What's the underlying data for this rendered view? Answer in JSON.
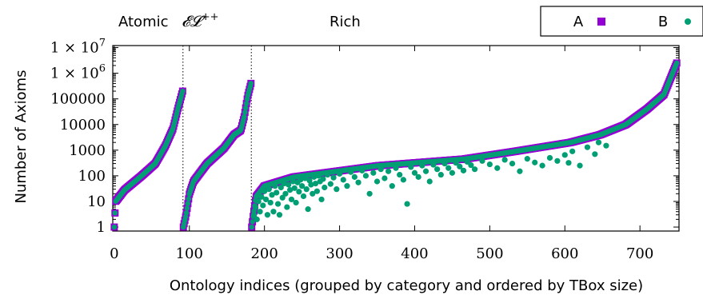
{
  "chart_data": {
    "type": "scatter",
    "xlabel": "Ontology indices (grouped by category and ordered by TBox size)",
    "ylabel": "Number of Axioms",
    "yscale": "log",
    "xlim": [
      -2,
      752
    ],
    "ylim": [
      0.7,
      12000000
    ],
    "xticks": [
      0,
      100,
      200,
      300,
      400,
      500,
      600,
      700
    ],
    "xtick_labels": [
      "0",
      "100",
      "200",
      "300",
      "400",
      "500",
      "600",
      "700"
    ],
    "yticks": [
      1,
      10,
      100,
      1000,
      10000,
      100000,
      1000000,
      10000000
    ],
    "ytick_labels": [
      "1",
      "10",
      "100",
      "1000",
      "10000",
      "100000",
      "1 × 10",
      "1 × 10"
    ],
    "ytick_exponents": [
      "",
      "",
      "",
      "",
      "",
      "",
      "6",
      "7"
    ],
    "groups": [
      {
        "label": "Atomic",
        "x_range": [
          0,
          91
        ]
      },
      {
        "label": "𝓔𝓛",
        "label_superscript": "++",
        "x_range": [
          92,
          182
        ]
      },
      {
        "label": "Rich",
        "x_range": [
          183,
          749
        ]
      }
    ],
    "separators_x": [
      91.5,
      182.5
    ],
    "legend_position": "top-right",
    "series": [
      {
        "name": "A",
        "marker": "square",
        "color": "#9400d3",
        "segments": [
          {
            "x_start": 0,
            "x_end": 91,
            "points": [
              [
                0,
                1
              ],
              [
                0.02,
                10
              ],
              [
                0.15,
                28
              ],
              [
                0.4,
                100
              ],
              [
                0.6,
                300
              ],
              [
                0.75,
                1500
              ],
              [
                0.86,
                7000
              ],
              [
                0.93,
                40000
              ],
              [
                1.0,
                200000
              ]
            ]
          },
          {
            "x_start": 92,
            "x_end": 182,
            "points": [
              [
                0,
                1
              ],
              [
                0.04,
                3
              ],
              [
                0.09,
                20
              ],
              [
                0.15,
                60
              ],
              [
                0.35,
                300
              ],
              [
                0.6,
                1200
              ],
              [
                0.75,
                4000
              ],
              [
                0.85,
                6000
              ],
              [
                0.9,
                20000
              ],
              [
                0.95,
                120000
              ],
              [
                1.0,
                400000
              ]
            ]
          },
          {
            "x_start": 183,
            "x_end": 749,
            "points": [
              [
                0,
                1
              ],
              [
                0.01,
                15
              ],
              [
                0.03,
                40
              ],
              [
                0.1,
                90
              ],
              [
                0.3,
                250
              ],
              [
                0.5,
                450
              ],
              [
                0.62,
                900
              ],
              [
                0.75,
                2000
              ],
              [
                0.82,
                4000
              ],
              [
                0.88,
                10000
              ],
              [
                0.93,
                40000
              ],
              [
                0.97,
                150000
              ],
              [
                1.0,
                2500000
              ]
            ]
          }
        ]
      },
      {
        "name": "B",
        "marker": "circle",
        "color": "#009e73",
        "extra_low_points": [
          [
            186,
            3
          ],
          [
            188,
            6
          ],
          [
            190,
            2
          ],
          [
            192,
            10
          ],
          [
            194,
            4
          ],
          [
            196,
            15
          ],
          [
            198,
            7
          ],
          [
            200,
            25
          ],
          [
            202,
            12
          ],
          [
            204,
            3
          ],
          [
            206,
            30
          ],
          [
            208,
            9
          ],
          [
            210,
            18
          ],
          [
            212,
            4
          ],
          [
            214,
            40
          ],
          [
            216,
            22
          ],
          [
            218,
            8
          ],
          [
            220,
            3
          ],
          [
            222,
            35
          ],
          [
            224,
            14
          ],
          [
            226,
            50
          ],
          [
            228,
            20
          ],
          [
            230,
            6
          ],
          [
            232,
            45
          ],
          [
            234,
            28
          ],
          [
            236,
            12
          ],
          [
            238,
            60
          ],
          [
            240,
            33
          ],
          [
            242,
            9
          ],
          [
            244,
            55
          ],
          [
            246,
            24
          ],
          [
            248,
            70
          ],
          [
            250,
            40
          ],
          [
            252,
            16
          ],
          [
            254,
            80
          ],
          [
            256,
            30
          ],
          [
            258,
            5
          ],
          [
            260,
            65
          ],
          [
            262,
            45
          ],
          [
            264,
            20
          ],
          [
            266,
            90
          ],
          [
            268,
            50
          ],
          [
            270,
            25
          ],
          [
            272,
            100
          ],
          [
            274,
            60
          ],
          [
            276,
            12
          ],
          [
            278,
            75
          ],
          [
            280,
            35
          ],
          [
            284,
            110
          ],
          [
            288,
            48
          ],
          [
            292,
            85
          ],
          [
            296,
            30
          ],
          [
            300,
            120
          ],
          [
            305,
            70
          ],
          [
            310,
            40
          ],
          [
            315,
            140
          ],
          [
            320,
            90
          ],
          [
            325,
            55
          ],
          [
            330,
            160
          ],
          [
            335,
            100
          ],
          [
            340,
            20
          ],
          [
            345,
            130
          ],
          [
            350,
            60
          ],
          [
            355,
            180
          ],
          [
            360,
            80
          ],
          [
            365,
            150
          ],
          [
            370,
            40
          ],
          [
            375,
            200
          ],
          [
            380,
            110
          ],
          [
            385,
            70
          ],
          [
            390,
            8
          ],
          [
            395,
            220
          ],
          [
            400,
            130
          ],
          [
            405,
            90
          ],
          [
            410,
            250
          ],
          [
            415,
            150
          ],
          [
            420,
            60
          ],
          [
            425,
            270
          ],
          [
            430,
            180
          ],
          [
            435,
            110
          ],
          [
            440,
            300
          ],
          [
            445,
            200
          ],
          [
            450,
            130
          ],
          [
            455,
            320
          ],
          [
            460,
            230
          ],
          [
            465,
            160
          ],
          [
            470,
            350
          ],
          [
            475,
            260
          ],
          [
            480,
            180
          ],
          [
            490,
            380
          ],
          [
            500,
            280
          ],
          [
            510,
            200
          ],
          [
            520,
            420
          ],
          [
            530,
            300
          ],
          [
            540,
            150
          ],
          [
            550,
            460
          ],
          [
            560,
            330
          ],
          [
            570,
            250
          ],
          [
            580,
            500
          ],
          [
            590,
            380
          ],
          [
            600,
            650
          ],
          [
            605,
            320
          ],
          [
            610,
            900
          ],
          [
            620,
            250
          ],
          [
            630,
            1300
          ],
          [
            640,
            700
          ],
          [
            645,
            2000
          ],
          [
            655,
            1500
          ]
        ]
      }
    ]
  },
  "legend": {
    "entries": [
      {
        "label": "A",
        "marker": "square",
        "color": "#9400d3"
      },
      {
        "label": "B",
        "marker": "circle",
        "color": "#009e73"
      }
    ]
  },
  "top_labels": {
    "atomic": "Atomic",
    "el_base": "𝓔𝓛",
    "el_sup": "++",
    "rich": "Rich"
  }
}
